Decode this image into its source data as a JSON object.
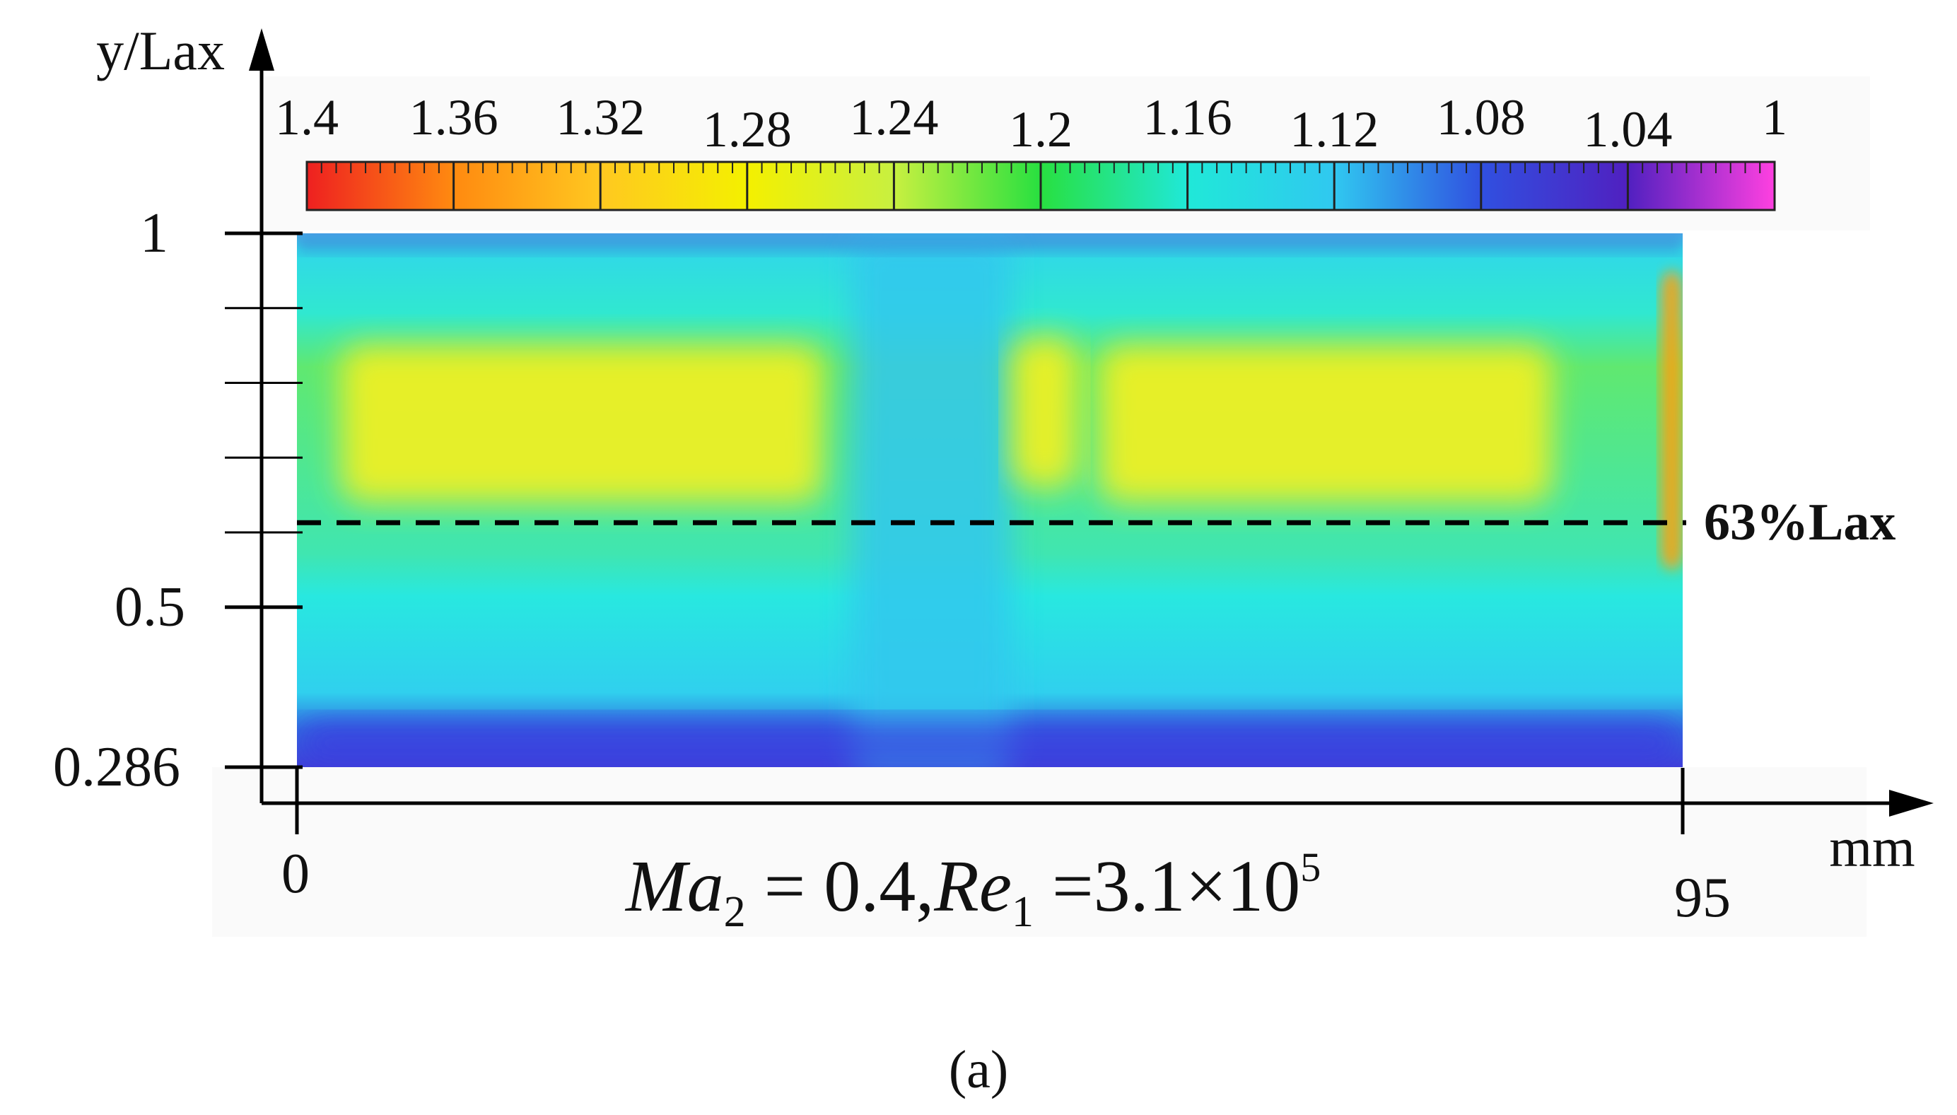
{
  "chart_data": {
    "type": "heatmap",
    "title": "",
    "panel_label": "(a)",
    "xlabel": "mm",
    "ylabel": "y/Lax",
    "xlim": [
      0,
      95
    ],
    "ylim": [
      0.286,
      1
    ],
    "x_ticks": [
      "0",
      "95"
    ],
    "y_ticks": [
      "0.286",
      "0.5",
      "1"
    ],
    "colorbar": {
      "ticks": [
        "1.4",
        "1.36",
        "1.32",
        "1.28",
        "1.24",
        "1.2",
        "1.16",
        "1.12",
        "1.08",
        "1.04",
        "1"
      ],
      "range": [
        1,
        1.4
      ],
      "colors": [
        "#ee2020",
        "#ff8a10",
        "#ffc820",
        "#f4f000",
        "#c8f040",
        "#28e040",
        "#20e8d8",
        "#30c8f0",
        "#3050e0",
        "#5020c0",
        "#ff40e0"
      ]
    },
    "annotations": [
      {
        "text": "63%Lax",
        "y": 0.63,
        "style": "dashed horizontal line"
      }
    ],
    "formula": {
      "ma_symbol": "Ma",
      "ma_sub": "2",
      "ma_eq": " = 0.4,",
      "re_symbol": "Re",
      "re_sub": "1",
      "re_eq": " =3.1×10",
      "re_exp": "5"
    },
    "regions": [
      {
        "name": "left yellow band",
        "x_range": [
          3,
          36
        ],
        "y_range": [
          0.64,
          0.85
        ],
        "value": 1.27
      },
      {
        "name": "center blue gap",
        "x_range": [
          38,
          49
        ],
        "y_range": [
          0.286,
          1
        ],
        "value": 1.12
      },
      {
        "name": "narrow yellow streak",
        "x_range": [
          49,
          53.5
        ],
        "y_range": [
          0.66,
          0.86
        ],
        "value": 1.26
      },
      {
        "name": "right yellow band",
        "x_range": [
          55,
          86
        ],
        "y_range": [
          0.64,
          0.85
        ],
        "value": 1.27
      },
      {
        "name": "trailing edge orange streak",
        "x_range": [
          93.5,
          95
        ],
        "y_range": [
          0.55,
          0.95
        ],
        "value": 1.32
      },
      {
        "name": "bottom blue band",
        "x_range": [
          0,
          95
        ],
        "y_range": [
          0.286,
          0.35
        ],
        "value": 1.07
      }
    ]
  }
}
